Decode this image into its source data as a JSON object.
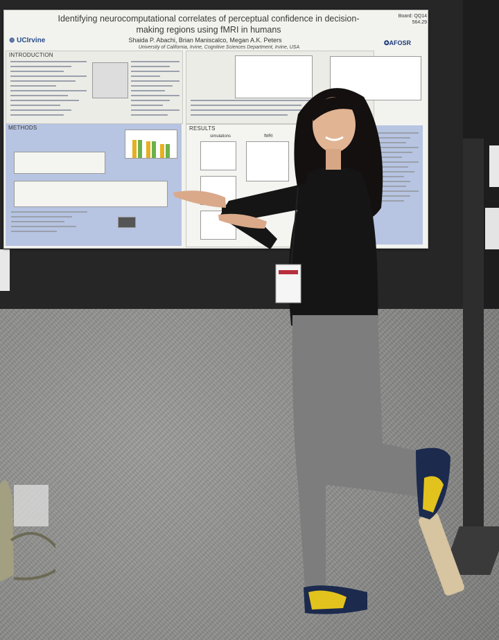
{
  "poster": {
    "title": "Identifying neurocomputational correlates of perceptual confidence in decision-making regions using fMRI in humans",
    "authors": "Shaida P. Abachi, Brian Maniscalco, Megan A.K. Peters",
    "affiliation": "University of California, Irvine, Cognitive Sciences Department, Irvine, USA",
    "board_label": "Board: QQ14",
    "board_number": "564.29",
    "logo_left": "UCIrvine",
    "logo_right": "AFOSR",
    "sections": {
      "introduction": "INTRODUCTION",
      "methods": "METHODS",
      "results": "RESULTS"
    },
    "results_subheads": {
      "simulations": "simulations",
      "fmri": "fMRI"
    }
  },
  "colors": {
    "board": "#262626",
    "poster": "#f2f2ee",
    "blue_panel": "#b7c4e2",
    "carpet": "#8d8d8b",
    "shirt": "#151515",
    "pants": "#7d7d7d",
    "shoe_yellow": "#e2c21d"
  }
}
